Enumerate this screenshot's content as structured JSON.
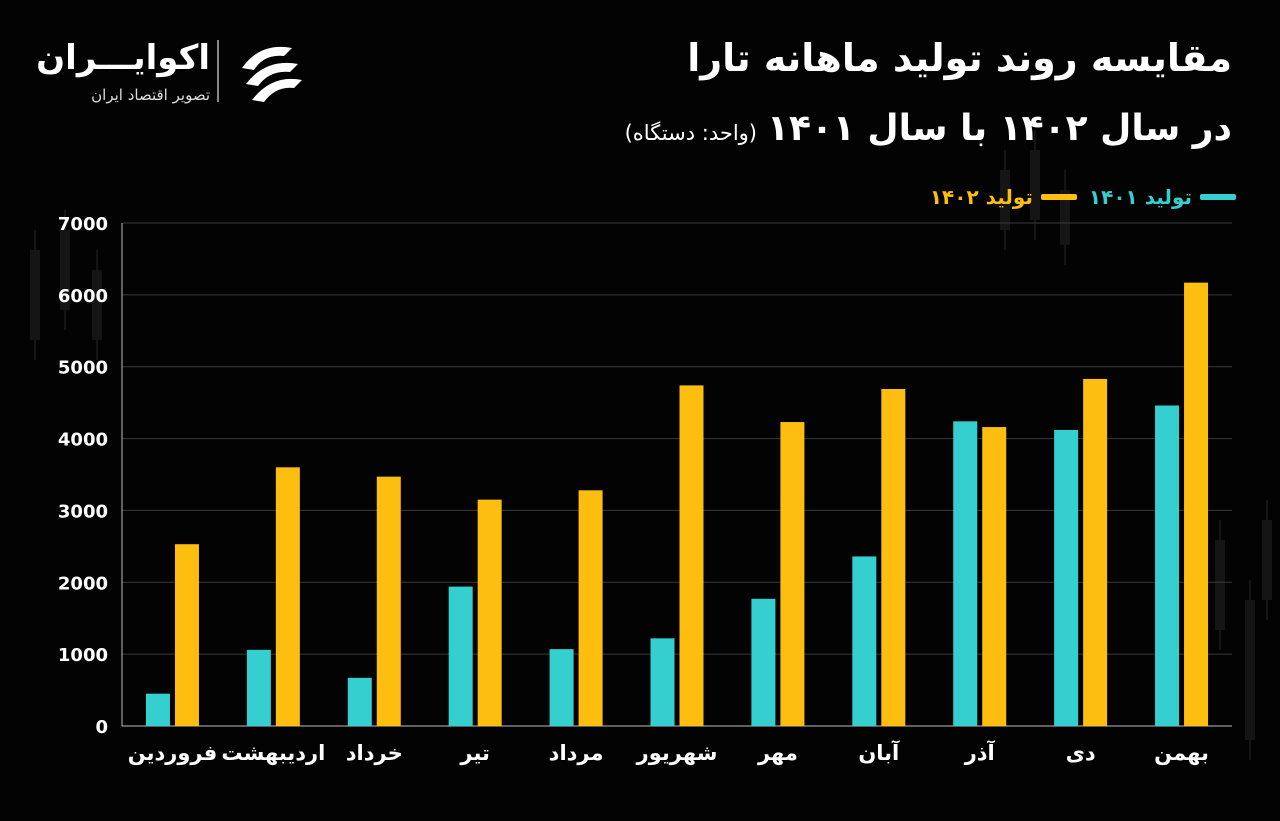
{
  "header": {
    "title_line1": "مقایسه روند تولید ماهانه تارا",
    "title_line2": "در سال ۱۴۰۲ با سال ۱۴۰۱",
    "title_unit": "(واحد: دستگاه)"
  },
  "logo": {
    "name": "اکوایـــران",
    "tagline": "تصویر اقتصاد ایران"
  },
  "colors": {
    "background": "#030303",
    "series_1401": "#36CFCF",
    "series_1402": "#FEBE10",
    "grid": "#3a3a3a",
    "text": "#ffffff"
  },
  "chart_data": {
    "type": "bar",
    "categories": [
      "فروردین",
      "اردیبهشت",
      "خرداد",
      "تیر",
      "مرداد",
      "شهریور",
      "مهر",
      "آبان",
      "آذر",
      "دی",
      "بهمن"
    ],
    "series": [
      {
        "name": "تولید ۱۴۰۱",
        "color": "#36CFCF",
        "values": [
          450,
          1060,
          670,
          1940,
          1070,
          1220,
          1770,
          2360,
          4240,
          4120,
          4460
        ]
      },
      {
        "name": "تولید ۱۴۰۲",
        "color": "#FEBE10",
        "values": [
          2530,
          3600,
          3470,
          3150,
          3280,
          4740,
          4230,
          4690,
          4160,
          4830,
          6170
        ]
      }
    ],
    "y_ticks": [
      "0",
      "1000",
      "2000",
      "3000",
      "4000",
      "5000",
      "6000",
      "7000"
    ],
    "ylim": [
      0,
      7000
    ],
    "xlabel": "",
    "ylabel": "",
    "grid": true,
    "legend_position": "top-right"
  }
}
